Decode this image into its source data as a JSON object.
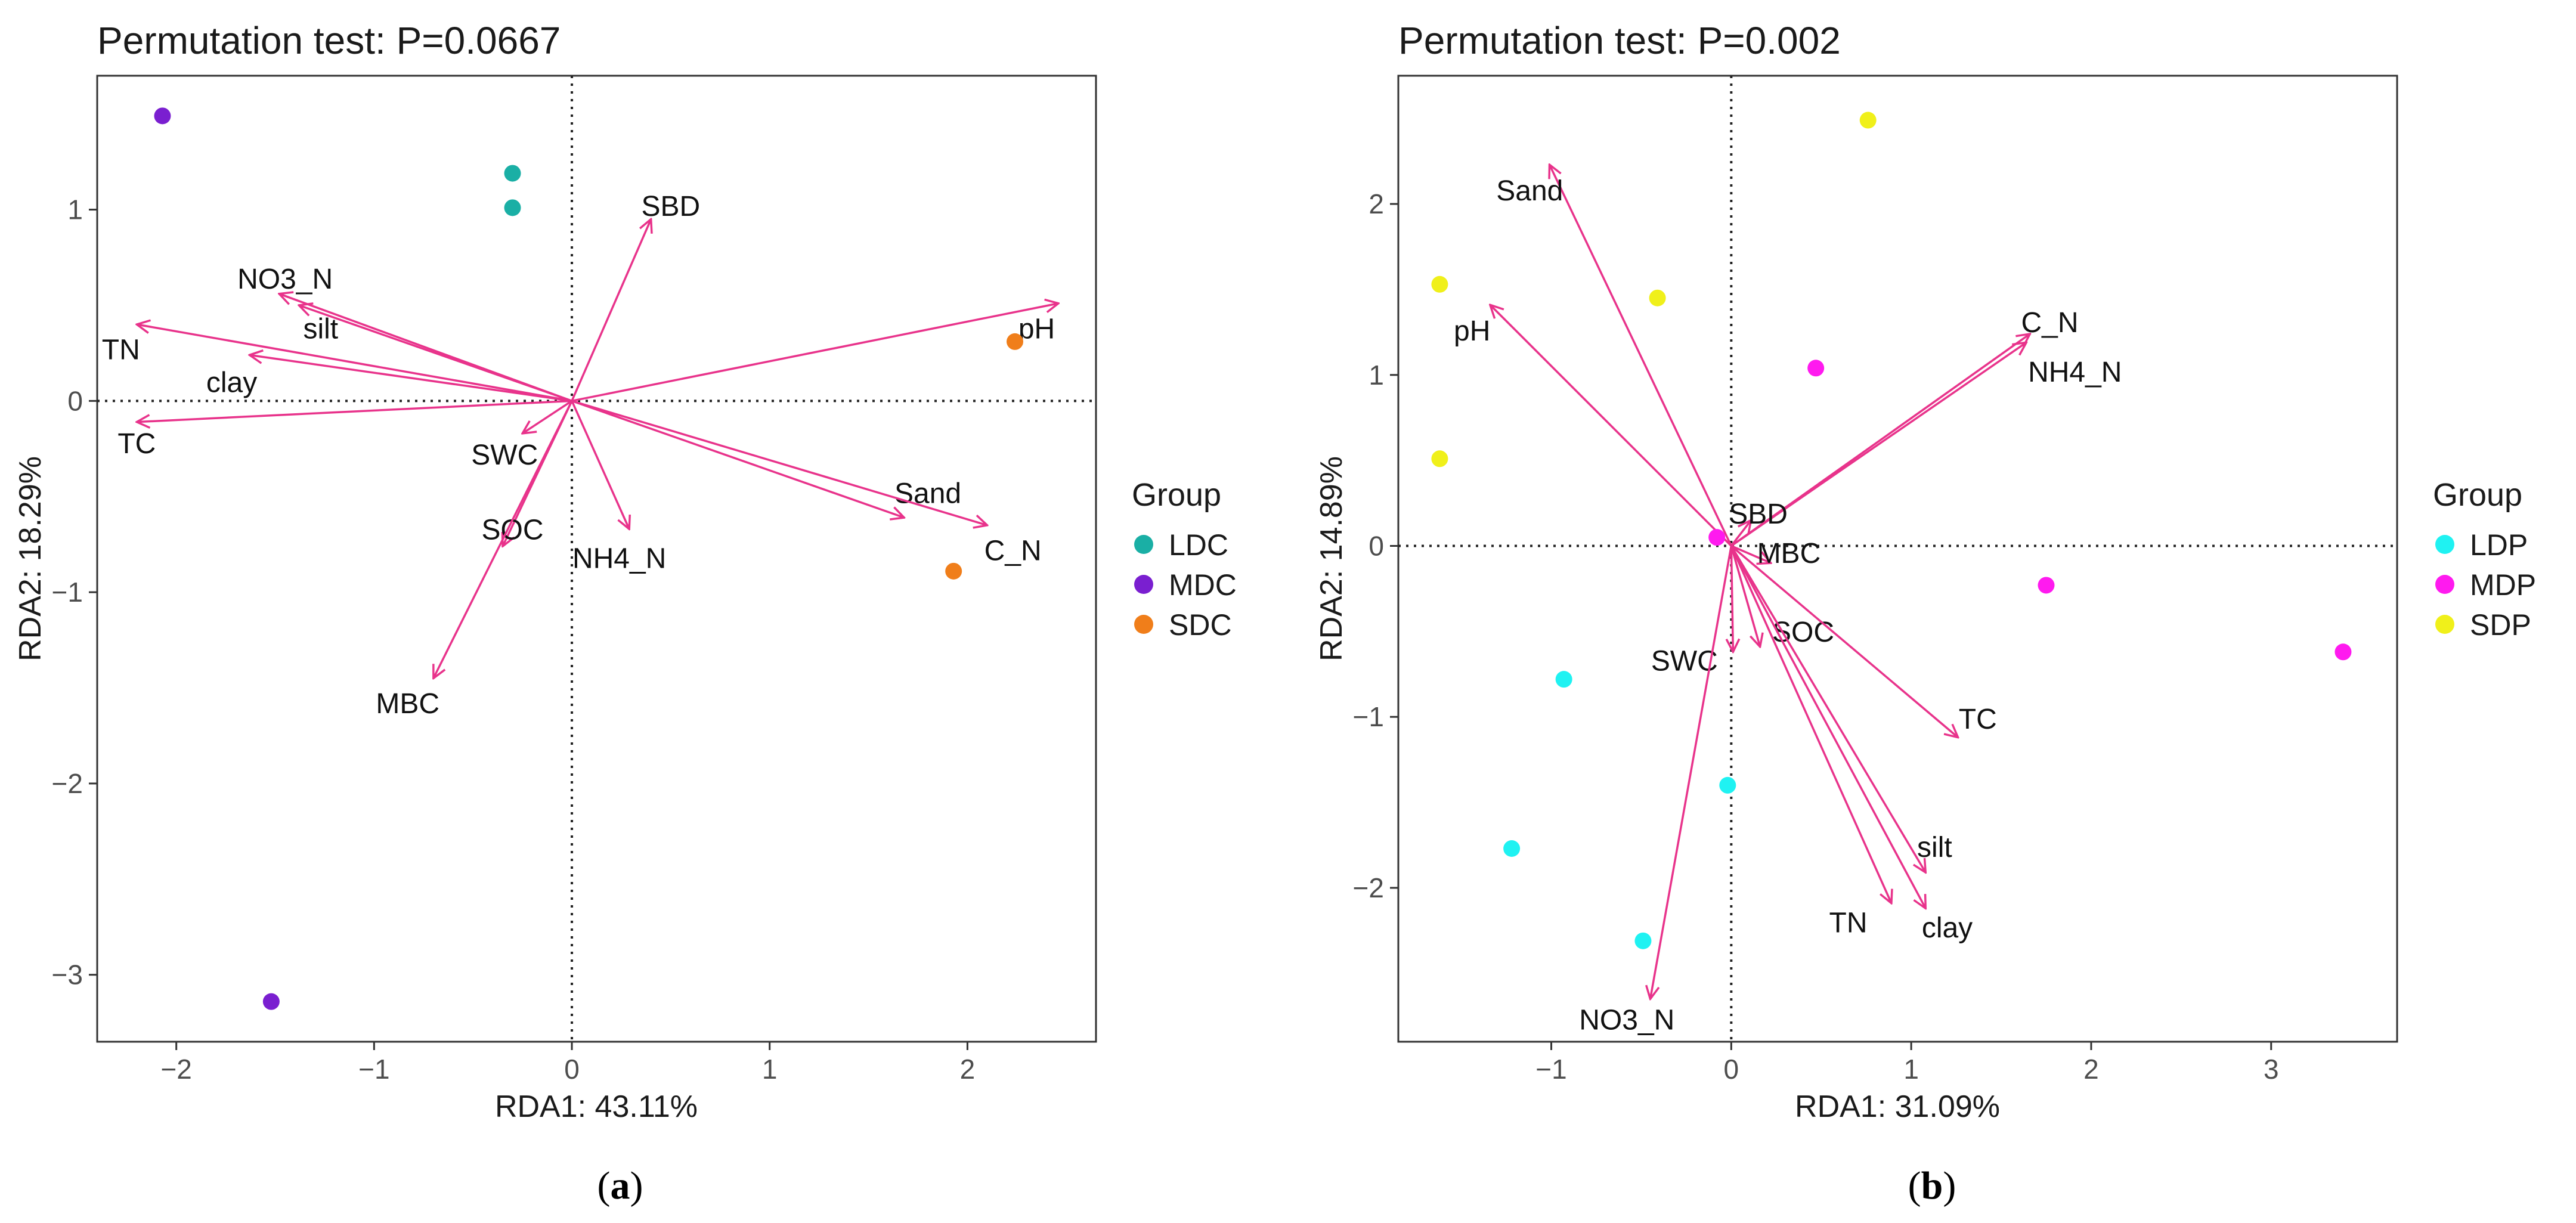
{
  "colors": {
    "arrow": "#E8338B",
    "frame": "#333333"
  },
  "chart_data": [
    {
      "type": "scatter",
      "panel": "a",
      "caption": {
        "open": "(",
        "letter": "a",
        "close": ")"
      },
      "title": "Permutation test: P=0.0667",
      "xlabel": "RDA1: 43.11%",
      "ylabel": "RDA2: 18.29%",
      "xlim": [
        -2.4,
        2.65
      ],
      "ylim": [
        -3.35,
        1.7
      ],
      "xticks": [
        -2,
        -1,
        0,
        1,
        2
      ],
      "yticks": [
        -3,
        -2,
        -1,
        0,
        1
      ],
      "grid": false,
      "legend": {
        "title": "Group",
        "position": "right",
        "entries": [
          {
            "name": "LDC",
            "color": "#1AAFA5"
          },
          {
            "name": "MDC",
            "color": "#7A1FD0"
          },
          {
            "name": "SDC",
            "color": "#F07E1A"
          }
        ]
      },
      "points": [
        {
          "group": "LDC",
          "x": -0.3,
          "y": 1.19
        },
        {
          "group": "LDC",
          "x": -0.3,
          "y": 1.01
        },
        {
          "group": "MDC",
          "x": -2.07,
          "y": 1.49
        },
        {
          "group": "MDC",
          "x": -1.52,
          "y": -3.14
        },
        {
          "group": "SDC",
          "x": 2.24,
          "y": 0.31
        },
        {
          "group": "SDC",
          "x": 1.93,
          "y": -0.89
        }
      ],
      "vectors": [
        {
          "name": "SBD",
          "x": 0.4,
          "y": 0.95,
          "lx": 0.5,
          "ly": 1.02
        },
        {
          "name": "NO3_N",
          "x": -1.48,
          "y": 0.56,
          "lx": -1.45,
          "ly": 0.64
        },
        {
          "name": "silt",
          "x": -1.38,
          "y": 0.5,
          "lx": -1.27,
          "ly": 0.38
        },
        {
          "name": "TN",
          "x": -2.2,
          "y": 0.4,
          "lx": -2.28,
          "ly": 0.27
        },
        {
          "name": "clay",
          "x": -1.63,
          "y": 0.24,
          "lx": -1.72,
          "ly": 0.1
        },
        {
          "name": "TC",
          "x": -2.2,
          "y": -0.11,
          "lx": -2.2,
          "ly": -0.22
        },
        {
          "name": "pH",
          "x": 2.46,
          "y": 0.51,
          "lx": 2.35,
          "ly": 0.38
        },
        {
          "name": "SWC",
          "x": -0.25,
          "y": -0.17,
          "lx": -0.34,
          "ly": -0.28
        },
        {
          "name": "SOC",
          "x": -0.35,
          "y": -0.76,
          "lx": -0.3,
          "ly": -0.67
        },
        {
          "name": "NH4_N",
          "x": 0.29,
          "y": -0.67,
          "lx": 0.24,
          "ly": -0.82
        },
        {
          "name": "Sand",
          "x": 1.68,
          "y": -0.61,
          "lx": 1.8,
          "ly": -0.48
        },
        {
          "name": "C_N",
          "x": 2.1,
          "y": -0.65,
          "lx": 2.23,
          "ly": -0.78
        },
        {
          "name": "MBC",
          "x": -0.7,
          "y": -1.45,
          "lx": -0.83,
          "ly": -1.58
        }
      ]
    },
    {
      "type": "scatter",
      "panel": "b",
      "caption": {
        "open": "(",
        "letter": "b",
        "close": ")"
      },
      "title": "Permutation test: P=0.002",
      "xlabel": "RDA1: 31.09%",
      "ylabel": "RDA2: 14.89%",
      "xlim": [
        -1.85,
        3.7
      ],
      "ylim": [
        -2.9,
        2.75
      ],
      "xticks": [
        -1,
        0,
        1,
        2,
        3
      ],
      "yticks": [
        -2,
        -1,
        0,
        1,
        2
      ],
      "grid": false,
      "legend": {
        "title": "Group",
        "position": "right",
        "entries": [
          {
            "name": "LDP",
            "color": "#1FF2F2"
          },
          {
            "name": "MDP",
            "color": "#FF1AEF"
          },
          {
            "name": "SDP",
            "color": "#F0F01A"
          }
        ]
      },
      "points": [
        {
          "group": "LDP",
          "x": -0.93,
          "y": -0.78
        },
        {
          "group": "LDP",
          "x": -1.22,
          "y": -1.77
        },
        {
          "group": "LDP",
          "x": -0.49,
          "y": -2.31
        },
        {
          "group": "LDP",
          "x": -0.02,
          "y": -1.4
        },
        {
          "group": "MDP",
          "x": -0.08,
          "y": 0.05
        },
        {
          "group": "MDP",
          "x": 0.47,
          "y": 1.04
        },
        {
          "group": "MDP",
          "x": 1.75,
          "y": -0.23
        },
        {
          "group": "MDP",
          "x": 3.4,
          "y": -0.62
        },
        {
          "group": "SDP",
          "x": 0.76,
          "y": 2.49
        },
        {
          "group": "SDP",
          "x": -0.41,
          "y": 1.45
        },
        {
          "group": "SDP",
          "x": -1.62,
          "y": 1.53
        },
        {
          "group": "SDP",
          "x": -1.62,
          "y": 0.51
        }
      ],
      "vectors": [
        {
          "name": "Sand",
          "x": -1.01,
          "y": 2.23,
          "lx": -1.12,
          "ly": 2.08
        },
        {
          "name": "pH",
          "x": -1.34,
          "y": 1.41,
          "lx": -1.44,
          "ly": 1.26
        },
        {
          "name": "C_N",
          "x": 1.66,
          "y": 1.24,
          "lx": 1.77,
          "ly": 1.31
        },
        {
          "name": "NH4_N",
          "x": 1.64,
          "y": 1.19,
          "lx": 1.91,
          "ly": 1.02
        },
        {
          "name": "SBD",
          "x": 0.11,
          "y": 0.15,
          "lx": 0.15,
          "ly": 0.19
        },
        {
          "name": "MBC",
          "x": 0.22,
          "y": -0.1,
          "lx": 0.32,
          "ly": -0.04
        },
        {
          "name": "SOC",
          "x": 0.16,
          "y": -0.59,
          "lx": 0.4,
          "ly": -0.5
        },
        {
          "name": "SWC",
          "x": 0.01,
          "y": -0.62,
          "lx": -0.26,
          "ly": -0.67
        },
        {
          "name": "TC",
          "x": 1.26,
          "y": -1.12,
          "lx": 1.37,
          "ly": -1.01
        },
        {
          "name": "silt",
          "x": 1.08,
          "y": -1.91,
          "lx": 1.13,
          "ly": -1.76
        },
        {
          "name": "TN",
          "x": 0.89,
          "y": -2.09,
          "lx": 0.65,
          "ly": -2.2
        },
        {
          "name": "clay",
          "x": 1.08,
          "y": -2.12,
          "lx": 1.2,
          "ly": -2.23
        },
        {
          "name": "NO3_N",
          "x": -0.45,
          "y": -2.65,
          "lx": -0.58,
          "ly": -2.77
        }
      ]
    }
  ]
}
